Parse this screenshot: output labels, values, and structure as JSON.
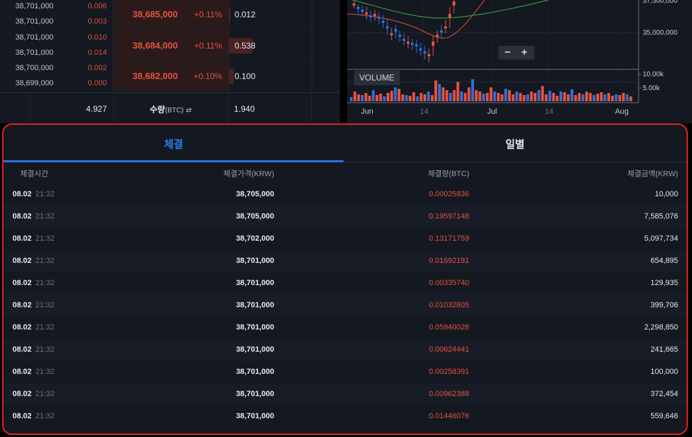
{
  "orderbook": {
    "rows": [
      {
        "lines": [
          {
            "price": "38,701,000",
            "qty": "0.006"
          },
          {
            "price": "38,701,000",
            "qty": "0.003"
          }
        ],
        "price": "38,685,000",
        "pct": "+0.11%",
        "volume": "0.012",
        "bar": 0.02
      },
      {
        "lines": [
          {
            "price": "38,701,000",
            "qty": "0.010"
          },
          {
            "price": "38,701,000",
            "qty": "0.014"
          }
        ],
        "price": "38,684,000",
        "pct": "+0.11%",
        "volume": "0.538",
        "bar": 0.28
      },
      {
        "lines": [
          {
            "price": "38,700,000",
            "qty": "0.002"
          },
          {
            "price": "38,699,000",
            "qty": "0.000"
          }
        ],
        "price": "38,682,000",
        "pct": "+0.10%",
        "volume": "0.100",
        "bar": 0.06
      }
    ],
    "footer": {
      "total_left": "4.927",
      "label": "수량",
      "unit": "(BTC)",
      "swap_icon": "⇄",
      "total_right": "1.940"
    }
  },
  "chart": {
    "y_labels": [
      "37,500,000",
      "35,000,000"
    ],
    "vol_labels": [
      "10.00k",
      "5.00k"
    ],
    "x_labels": [
      "Jun",
      "14",
      "Jul",
      "14",
      "Aug"
    ],
    "zoom_minus": "−",
    "zoom_plus": "+",
    "volume_label": "VOLUME",
    "colors": {
      "up": "#e5533f",
      "down": "#2f6fe0",
      "ma_short": "#e5533f",
      "ma_long": "#3fb24a"
    }
  },
  "trades": {
    "tabs": [
      {
        "label": "체결"
      },
      {
        "label": "일별"
      }
    ],
    "headers": {
      "time": "체결시간",
      "price": "체결가격(KRW)",
      "volume": "체결량(BTC)",
      "amount": "체결금액(KRW)"
    },
    "rows": [
      {
        "date": "08.02",
        "time": "21:32",
        "price": "38,705,000",
        "volume": "0.00025836",
        "amount": "10,000"
      },
      {
        "date": "08.02",
        "time": "21:32",
        "price": "38,705,000",
        "volume": "0.19597148",
        "amount": "7,585,076"
      },
      {
        "date": "08.02",
        "time": "21:32",
        "price": "38,702,000",
        "volume": "0.13171759",
        "amount": "5,097,734"
      },
      {
        "date": "08.02",
        "time": "21:32",
        "price": "38,701,000",
        "volume": "0.01692191",
        "amount": "654,895"
      },
      {
        "date": "08.02",
        "time": "21:32",
        "price": "38,701,000",
        "volume": "0.00335740",
        "amount": "129,935"
      },
      {
        "date": "08.02",
        "time": "21:32",
        "price": "38,701,000",
        "volume": "0.01032805",
        "amount": "399,706"
      },
      {
        "date": "08.02",
        "time": "21:32",
        "price": "38,701,000",
        "volume": "0.05940028",
        "amount": "2,298,850"
      },
      {
        "date": "08.02",
        "time": "21:32",
        "price": "38,701,000",
        "volume": "0.00624441",
        "amount": "241,665"
      },
      {
        "date": "08.02",
        "time": "21:32",
        "price": "38,701,000",
        "volume": "0.00258391",
        "amount": "100,000"
      },
      {
        "date": "08.02",
        "time": "21:32",
        "price": "38,701,000",
        "volume": "0.00962388",
        "amount": "372,454"
      },
      {
        "date": "08.02",
        "time": "21:32",
        "price": "38,701,000",
        "volume": "0.01446076",
        "amount": "559,646"
      }
    ]
  }
}
